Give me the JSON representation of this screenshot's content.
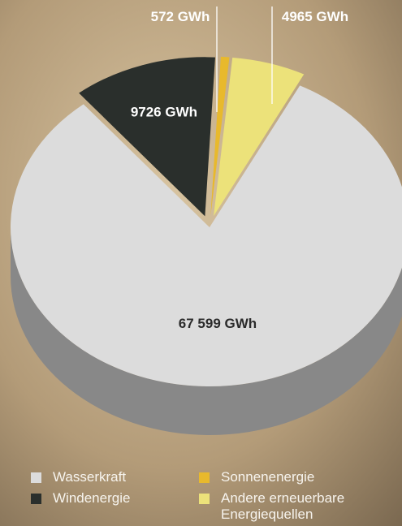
{
  "chart_data": {
    "type": "pie",
    "title": "",
    "slices": [
      {
        "label": "Wasserkraft",
        "value": 67599,
        "value_label": "67 599 GWh",
        "color": "#dcdcdc"
      },
      {
        "label": "Windenergie",
        "value": 9726,
        "value_label": "9726 GWh",
        "color": "#2a2f2c"
      },
      {
        "label": "Sonnenenergie",
        "value": 572,
        "value_label": "572 GWh",
        "color": "#e8b92c"
      },
      {
        "label": "Andere erneuerbare Energiequellen",
        "value": 4965,
        "value_label": "4965 GWh",
        "color": "#ece27a"
      }
    ],
    "legend_position": "bottom",
    "exploded": [
      "Windenergie",
      "Sonnenenergie",
      "Andere erneuerbare Energiequellen"
    ],
    "style": "3d"
  },
  "legend": {
    "wasserkraft": "Wasserkraft",
    "windenergie": "Windenergie",
    "sonnenenergie": "Sonnenenergie",
    "andere_line1": "Andere erneuerbare",
    "andere_line2": "Energiequellen"
  },
  "colors": {
    "background_light": "#c9b28f",
    "background_dark": "#7d6c52",
    "legend_text": "#f7f4ee"
  }
}
